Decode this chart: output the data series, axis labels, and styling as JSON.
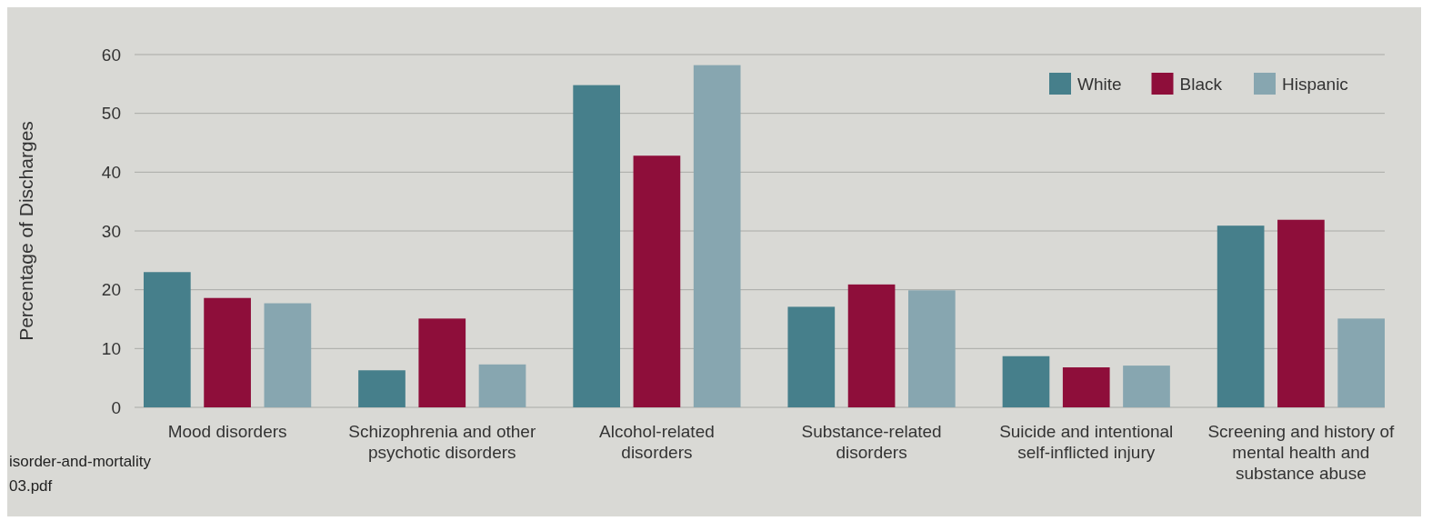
{
  "chart_data": {
    "type": "bar",
    "ylabel": "Percentage of Discharges",
    "categories": [
      "Mood disorders",
      "Schizophrenia and other psychotic disorders",
      "Alcohol-related disorders",
      "Substance-related disorders",
      "Suicide and intentional self-inflicted injury",
      "Screening and history of mental health and substance abuse"
    ],
    "series": [
      {
        "name": "White",
        "color": "#467f8b",
        "values": [
          23,
          6.3,
          54.8,
          17.1,
          8.7,
          30.9
        ]
      },
      {
        "name": "Black",
        "color": "#8e0e3a",
        "values": [
          18.6,
          15.1,
          42.8,
          20.9,
          6.8,
          31.9
        ]
      },
      {
        "name": "Hispanic",
        "color": "#87a6b0",
        "values": [
          17.7,
          7.3,
          58.2,
          19.9,
          7.1,
          15.1
        ]
      }
    ],
    "ylim": [
      0,
      60
    ],
    "yticks": [
      0,
      10,
      20,
      30,
      40,
      50,
      60
    ],
    "grid": "y",
    "legend": "top right",
    "annotations": [
      "isorder-and-mortality",
      "03.pdf"
    ]
  }
}
